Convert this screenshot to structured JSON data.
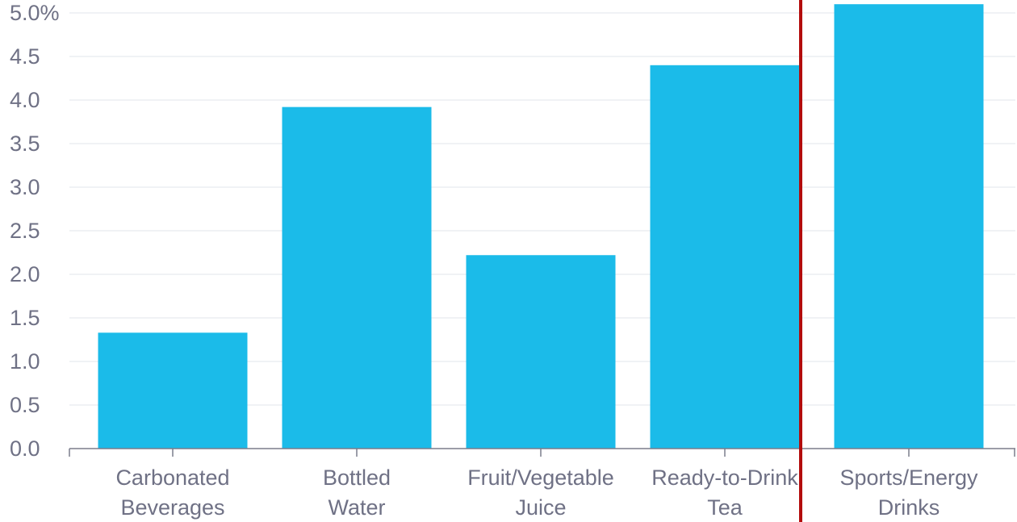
{
  "chart_data": {
    "type": "bar",
    "title": "",
    "xlabel": "",
    "ylabel": "",
    "unit": "%",
    "ylim": [
      0,
      5.0
    ],
    "yticks": [
      {
        "value": 0.0,
        "label": "0.0"
      },
      {
        "value": 0.5,
        "label": "0.5"
      },
      {
        "value": 1.0,
        "label": "1.0"
      },
      {
        "value": 1.5,
        "label": "1.5"
      },
      {
        "value": 2.0,
        "label": "2.0"
      },
      {
        "value": 2.5,
        "label": "2.5"
      },
      {
        "value": 3.0,
        "label": "3.0"
      },
      {
        "value": 3.5,
        "label": "3.5"
      },
      {
        "value": 4.0,
        "label": "4.0"
      },
      {
        "value": 4.5,
        "label": "4.5"
      },
      {
        "value": 5.0,
        "label": "5.0%"
      }
    ],
    "categories": [
      [
        "Carbonated",
        "Beverages"
      ],
      [
        "Bottled",
        "Water"
      ],
      [
        "Fruit/Vegetable",
        "Juice"
      ],
      [
        "Ready-to-Drink",
        "Tea"
      ],
      [
        "Sports/Energy",
        "Drinks"
      ]
    ],
    "values": [
      1.33,
      3.92,
      2.22,
      4.4,
      5.1
    ],
    "grid": true,
    "colors": {
      "bar": "#1bbbe9",
      "grid": "#eceef2",
      "axis": "#7b7d8c",
      "text": "#6f7185",
      "divider": "#b30c0c"
    },
    "annotations": [
      {
        "type": "vertical-line",
        "between_categories": [
          "Ready-to-Drink Tea",
          "Sports/Energy Drinks"
        ]
      }
    ]
  }
}
